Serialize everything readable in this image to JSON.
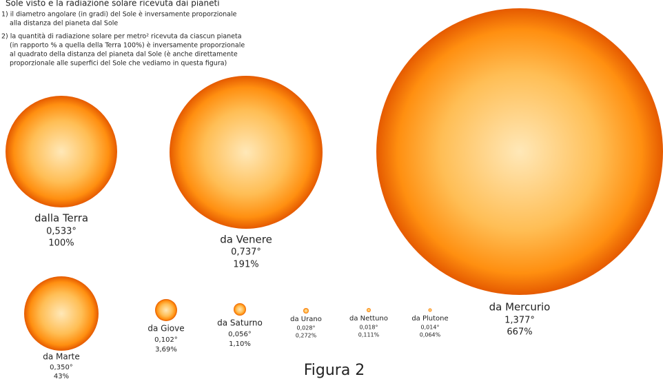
{
  "header": {
    "title": "Sole visto e la radiazione solare ricevuta dai pianeti"
  },
  "notes": [
    [
      "1) il diametro angolare (in gradi) del Sole è inversamente proporzionale",
      "alla distanza del pianeta dal Sole"
    ],
    [
      "2) la quantità di radiazione solare per metro² ricevuta da ciascun pianeta",
      "(in rapporto % a quella della Terra 100%) è inversamente proporzionale",
      "al quadrato della distanza del pianeta dal Sole (è anche direttamente",
      "proporzionale alle superfici del Sole che vediamo in questa figura)"
    ]
  ],
  "suns": [
    {
      "label": "dalla Terra",
      "angle": "0,533°",
      "percent": "100%"
    },
    {
      "label": "da Venere",
      "angle": "0,737°",
      "percent": "191%"
    },
    {
      "label": "da Mercurio",
      "angle": "1,377°",
      "percent": "667%"
    },
    {
      "label": "da Marte",
      "angle": "0,350°",
      "percent": "43%"
    },
    {
      "label": "da Giove",
      "angle": "0,102°",
      "percent": "3,69%"
    },
    {
      "label": "da Saturno",
      "angle": "0,056°",
      "percent": "1,10%"
    },
    {
      "label": "da Urano",
      "angle": "0,028°",
      "percent": "0,272%"
    },
    {
      "label": "da Nettuno",
      "angle": "0,018°",
      "percent": "0,111%"
    },
    {
      "label": "da Plutone",
      "angle": "0,014°",
      "percent": "0,064%"
    }
  ],
  "caption": "Figura 2"
}
